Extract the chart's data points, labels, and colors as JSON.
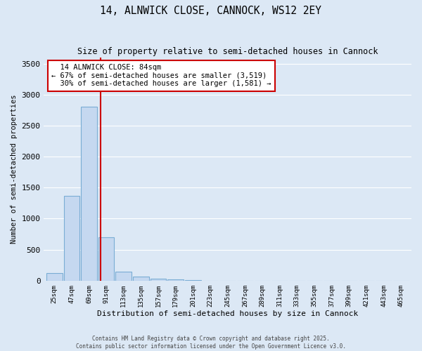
{
  "title_line1": "14, ALNWICK CLOSE, CANNOCK, WS12 2EY",
  "title_line2": "Size of property relative to semi-detached houses in Cannock",
  "xlabel": "Distribution of semi-detached houses by size in Cannock",
  "ylabel": "Number of semi-detached properties",
  "bin_labels": [
    "25sqm",
    "47sqm",
    "69sqm",
    "91sqm",
    "113sqm",
    "135sqm",
    "157sqm",
    "179sqm",
    "201sqm",
    "223sqm",
    "245sqm",
    "267sqm",
    "289sqm",
    "311sqm",
    "333sqm",
    "355sqm",
    "377sqm",
    "399sqm",
    "421sqm",
    "443sqm",
    "465sqm"
  ],
  "bar_heights": [
    120,
    1370,
    2800,
    700,
    150,
    70,
    35,
    25,
    5,
    2,
    1,
    0,
    0,
    0,
    0,
    0,
    0,
    0,
    0,
    0,
    0
  ],
  "bar_color": "#c5d8f0",
  "bar_edge_color": "#7aadd4",
  "property_sqm": 84,
  "property_label": "14 ALNWICK CLOSE: 84sqm",
  "smaller_pct": "67%",
  "smaller_count": "3,519",
  "larger_pct": "30%",
  "larger_count": "1,581",
  "vline_color": "#cc0000",
  "annotation_box_color": "#cc0000",
  "ylim": [
    0,
    3600
  ],
  "yticks": [
    0,
    500,
    1000,
    1500,
    2000,
    2500,
    3000,
    3500
  ],
  "bg_color": "#dce8f5",
  "grid_color": "#ffffff",
  "footer_line1": "Contains HM Land Registry data © Crown copyright and database right 2025.",
  "footer_line2": "Contains public sector information licensed under the Open Government Licence v3.0.",
  "bin_width": 22,
  "bin_starts": [
    25,
    47,
    69,
    91,
    113,
    135,
    157,
    179,
    201,
    223,
    245,
    267,
    289,
    311,
    333,
    355,
    377,
    399,
    421,
    443,
    465
  ]
}
